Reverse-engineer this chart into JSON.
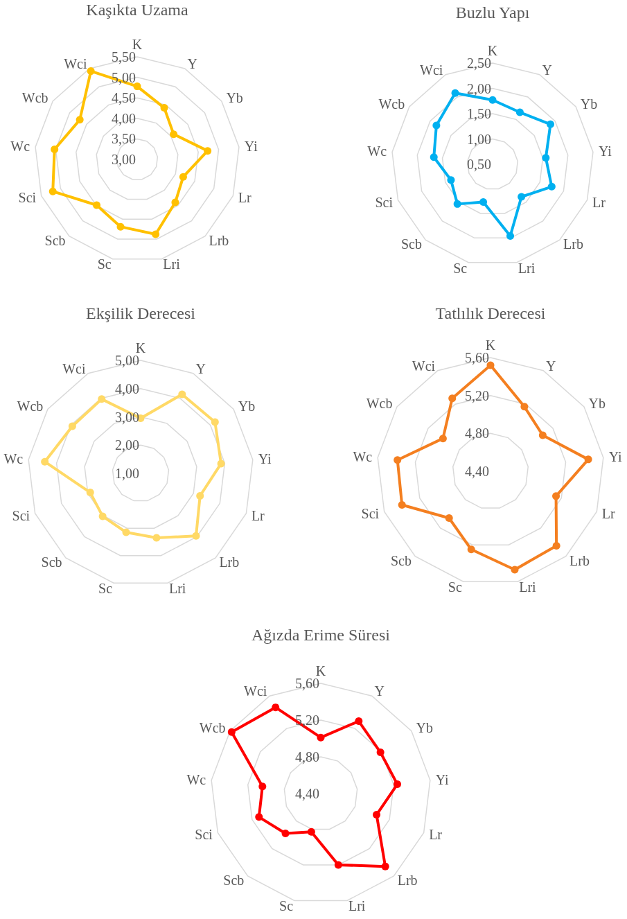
{
  "chart_data": [
    {
      "type": "radar",
      "title": "Kaşıkta Uzama",
      "categories": [
        "K",
        "Y",
        "Yb",
        "Yi",
        "Lr",
        "Lrb",
        "Lri",
        "Sc",
        "Scb",
        "Sci",
        "Wc",
        "Wcb",
        "Wci"
      ],
      "series": [
        {
          "color": "#ffc000",
          "values": [
            4.78,
            4.42,
            4.08,
            4.73,
            4.2,
            4.4,
            4.88,
            4.69,
            4.49,
            5.2,
            5.03,
            4.7,
            5.43
          ]
        }
      ],
      "ylim": [
        3,
        5.5
      ],
      "yticks": [
        {
          "value": 3,
          "label": "3,00"
        },
        {
          "value": 3.5,
          "label": "3,50"
        },
        {
          "value": 4,
          "label": "4,00"
        },
        {
          "value": 4.5,
          "label": "4,50"
        },
        {
          "value": 5,
          "label": "5,00"
        },
        {
          "value": 5.5,
          "label": "5,50"
        }
      ],
      "grid": true,
      "marker": "circle"
    },
    {
      "type": "radar",
      "title": "Buzlu Yapı",
      "categories": [
        "K",
        "Y",
        "Yb",
        "Yi",
        "Lr",
        "Lrb",
        "Lri",
        "Sc",
        "Scb",
        "Sci",
        "Wc",
        "Wcb",
        "Wci"
      ],
      "series": [
        {
          "color": "#00b0f0",
          "values": [
            1.77,
            1.66,
            1.89,
            1.56,
            1.75,
            1.36,
            1.96,
            1.27,
            1.55,
            1.38,
            1.67,
            1.85,
            2.09
          ]
        }
      ],
      "ylim": [
        0.5,
        2.5
      ],
      "yticks": [
        {
          "value": 0.5,
          "label": "0,50"
        },
        {
          "value": 1,
          "label": "1,00"
        },
        {
          "value": 1.5,
          "label": "1,50"
        },
        {
          "value": 2,
          "label": "2,00"
        },
        {
          "value": 2.5,
          "label": "2,50"
        }
      ],
      "grid": true,
      "marker": "circle"
    },
    {
      "type": "radar",
      "title": "Ekşilik Derecesi",
      "categories": [
        "K",
        "Y",
        "Yb",
        "Yi",
        "Lr",
        "Lrb",
        "Lri",
        "Sc",
        "Scb",
        "Sci",
        "Wc",
        "Wcb",
        "Wci"
      ],
      "series": [
        {
          "color": "#ffd966",
          "values": [
            2.95,
            4.16,
            4.2,
            3.87,
            3.25,
            3.96,
            3.35,
            3.15,
            3.03,
            2.91,
            4.42,
            3.94,
            3.97
          ]
        }
      ],
      "ylim": [
        1,
        5
      ],
      "yticks": [
        {
          "value": 1,
          "label": "1,00"
        },
        {
          "value": 2,
          "label": "2,00"
        },
        {
          "value": 3,
          "label": "3,00"
        },
        {
          "value": 4,
          "label": "4,00"
        },
        {
          "value": 5,
          "label": "5,00"
        }
      ],
      "grid": true,
      "marker": "circle"
    },
    {
      "type": "radar",
      "title": "Tatlılık Derecesi",
      "categories": [
        "K",
        "Y",
        "Yb",
        "Yi",
        "Lr",
        "Lrb",
        "Lri",
        "Sc",
        "Scb",
        "Sci",
        "Wc",
        "Wcb",
        "Wci"
      ],
      "series": [
        {
          "color": "#f47f20",
          "values": [
            5.52,
            5.17,
            5.07,
            5.44,
            5.14,
            5.45,
            5.47,
            5.25,
            5.06,
            5.4,
            5.39,
            5.01,
            5.27
          ]
        }
      ],
      "ylim": [
        4.4,
        5.6
      ],
      "yticks": [
        {
          "value": 4.4,
          "label": "4,40"
        },
        {
          "value": 4.8,
          "label": "4,80"
        },
        {
          "value": 5.2,
          "label": "5,20"
        },
        {
          "value": 5.6,
          "label": "5,60"
        }
      ],
      "grid": true,
      "marker": "circle"
    },
    {
      "type": "radar",
      "title": "Ağızda Erime Süresi",
      "categories": [
        "K",
        "Y",
        "Yb",
        "Yi",
        "Lr",
        "Lrb",
        "Lri",
        "Sc",
        "Scb",
        "Sci",
        "Wc",
        "Wcb",
        "Wci"
      ],
      "series": [
        {
          "color": "#ff0000",
          "values": [
            5.01,
            5.29,
            5.19,
            5.24,
            5.05,
            5.46,
            5.2,
            4.83,
            4.98,
            5.12,
            5.04,
            5.58,
            5.46
          ]
        }
      ],
      "ylim": [
        4.4,
        5.6
      ],
      "yticks": [
        {
          "value": 4.4,
          "label": "4,40"
        },
        {
          "value": 4.8,
          "label": "4,80"
        },
        {
          "value": 5.2,
          "label": "5,20"
        },
        {
          "value": 5.6,
          "label": "5,60"
        }
      ],
      "grid": true,
      "marker": "circle"
    }
  ]
}
